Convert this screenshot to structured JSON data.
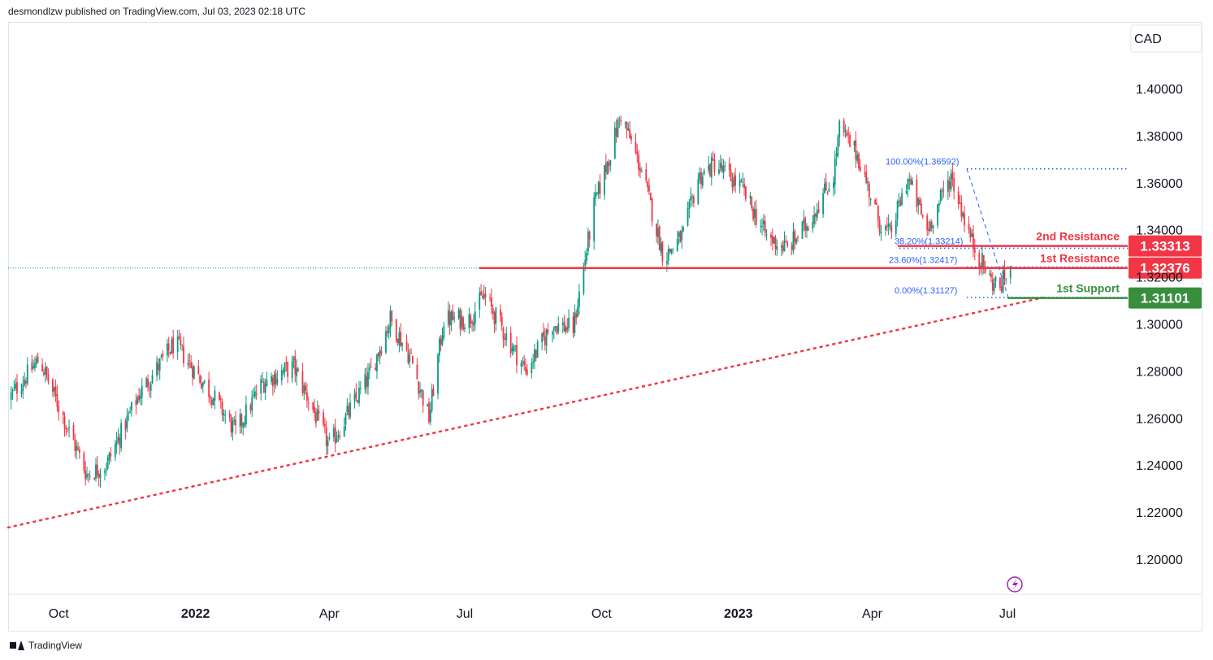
{
  "header": {
    "published": "desmondlzw published on TradingView.com, Jul 03, 2023 02:18 UTC"
  },
  "footer": {
    "brand": "TradingView"
  },
  "chart_data": {
    "type": "candlestick",
    "currency_label": "CAD",
    "y_ticks": [
      "1.40000",
      "1.38000",
      "1.36000",
      "1.34000",
      "1.32000",
      "1.30000",
      "1.28000",
      "1.26000",
      "1.24000",
      "1.22000",
      "1.20000"
    ],
    "ylim": [
      1.185,
      1.415
    ],
    "x_ticks": [
      {
        "label": "Oct",
        "date": "2021-10-01",
        "bold": false
      },
      {
        "label": "2022",
        "date": "2022-01-01",
        "bold": true
      },
      {
        "label": "Apr",
        "date": "2022-04-01",
        "bold": false
      },
      {
        "label": "Jul",
        "date": "2022-07-01",
        "bold": false
      },
      {
        "label": "Oct",
        "date": "2022-10-01",
        "bold": false
      },
      {
        "label": "2023",
        "date": "2023-01-01",
        "bold": true
      },
      {
        "label": "Apr",
        "date": "2023-04-01",
        "bold": false
      },
      {
        "label": "Jul",
        "date": "2023-07-01",
        "bold": false
      }
    ],
    "xlim": [
      "2021-08-28",
      "2023-09-22"
    ],
    "price_path": [
      {
        "date": "2021-08-28",
        "close": 1.268
      },
      {
        "date": "2021-09-18",
        "close": 1.285
      },
      {
        "date": "2021-10-20",
        "close": 1.236
      },
      {
        "date": "2021-11-02",
        "close": 1.24
      },
      {
        "date": "2021-11-24",
        "close": 1.27
      },
      {
        "date": "2021-12-18",
        "close": 1.292
      },
      {
        "date": "2022-01-12",
        "close": 1.27
      },
      {
        "date": "2022-01-28",
        "close": 1.254
      },
      {
        "date": "2022-02-15",
        "close": 1.275
      },
      {
        "date": "2022-03-08",
        "close": 1.282
      },
      {
        "date": "2022-04-01",
        "close": 1.248
      },
      {
        "date": "2022-04-28",
        "close": 1.278
      },
      {
        "date": "2022-05-12",
        "close": 1.302
      },
      {
        "date": "2022-05-26",
        "close": 1.285
      },
      {
        "date": "2022-06-07",
        "close": 1.26
      },
      {
        "date": "2022-06-17",
        "close": 1.302
      },
      {
        "date": "2022-07-04",
        "close": 1.302
      },
      {
        "date": "2022-07-14",
        "close": 1.312
      },
      {
        "date": "2022-08-11",
        "close": 1.28
      },
      {
        "date": "2022-08-29",
        "close": 1.3
      },
      {
        "date": "2022-09-12",
        "close": 1.298
      },
      {
        "date": "2022-09-26",
        "close": 1.35
      },
      {
        "date": "2022-10-08",
        "close": 1.375
      },
      {
        "date": "2022-10-14",
        "close": 1.389
      },
      {
        "date": "2022-10-28",
        "close": 1.365
      },
      {
        "date": "2022-11-12",
        "close": 1.328
      },
      {
        "date": "2022-11-25",
        "close": 1.338
      },
      {
        "date": "2022-12-05",
        "close": 1.362
      },
      {
        "date": "2022-12-16",
        "close": 1.368
      },
      {
        "date": "2023-01-03",
        "close": 1.358
      },
      {
        "date": "2023-01-20",
        "close": 1.337
      },
      {
        "date": "2023-02-03",
        "close": 1.332
      },
      {
        "date": "2023-02-17",
        "close": 1.343
      },
      {
        "date": "2023-03-06",
        "close": 1.363
      },
      {
        "date": "2023-03-10",
        "close": 1.383
      },
      {
        "date": "2023-03-22",
        "close": 1.372
      },
      {
        "date": "2023-04-06",
        "close": 1.343
      },
      {
        "date": "2023-04-13",
        "close": 1.338
      },
      {
        "date": "2023-04-25",
        "close": 1.362
      },
      {
        "date": "2023-05-08",
        "close": 1.34
      },
      {
        "date": "2023-05-24",
        "close": 1.363
      },
      {
        "date": "2023-06-07",
        "close": 1.335
      },
      {
        "date": "2023-06-20",
        "close": 1.318
      },
      {
        "date": "2023-06-26",
        "close": 1.316
      },
      {
        "date": "2023-07-03",
        "close": 1.324
      }
    ],
    "last_price": "1.32376",
    "levels": [
      {
        "name": "2nd Resistance",
        "value": 1.33313,
        "tag": "1.33313",
        "color": "#f23645",
        "type": "resistance"
      },
      {
        "name": "1st Resistance",
        "value": 1.32376,
        "tag": "1.32376",
        "color": "#f23645",
        "type": "resistance"
      },
      {
        "name": "1st Support",
        "value": 1.31101,
        "tag": "1.31101",
        "color": "#388e3c",
        "type": "support"
      }
    ],
    "fibonacci": [
      {
        "label": "100.00%(1.36592)",
        "value": 1.36592
      },
      {
        "label": "38.20%(1.33214)",
        "value": 1.33214
      },
      {
        "label": "23.60%(1.32417)",
        "value": 1.32417
      },
      {
        "label": "0.00%(1.31127)",
        "value": 1.31127
      }
    ],
    "trendline": {
      "start": {
        "date": "2021-08-28",
        "value": 1.2135
      },
      "end": {
        "date": "2023-07-25",
        "value": 1.3112
      },
      "style": "dotted",
      "color": "#f23645"
    }
  }
}
